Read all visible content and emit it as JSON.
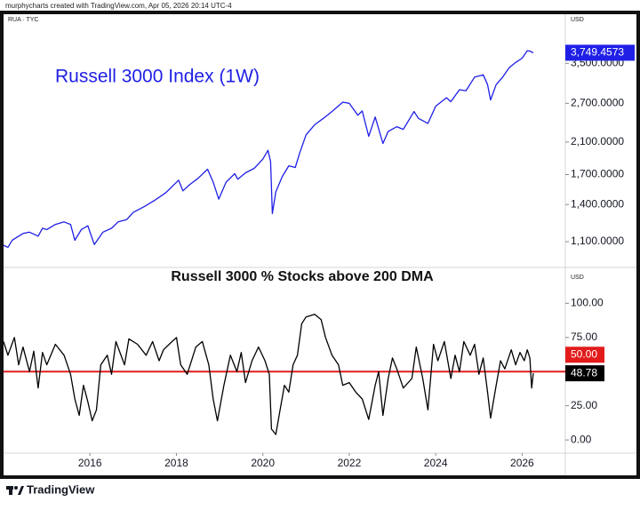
{
  "header": "murphycharts created with TradingView.com, Apr 05, 2026 20:14 UTC-4",
  "footer": "TradingView",
  "chart_data": [
    {
      "type": "line",
      "symbol": "RUA · TYC",
      "axis_unit": "USD",
      "title": "Russell 3000 Index (1W)",
      "color": "#1f1fe6",
      "log_scale": true,
      "grid": false,
      "xlim": [
        2014,
        2027
      ],
      "ylim": [
        936,
        4815
      ],
      "yticks": [
        {
          "value": 1100,
          "label": "1,100.0000"
        },
        {
          "value": 1400,
          "label": "1,400.0000"
        },
        {
          "value": 1700,
          "label": "1,700.0000"
        },
        {
          "value": 2100,
          "label": "2,100.0000"
        },
        {
          "value": 2700,
          "label": "2,700.0000"
        },
        {
          "value": 3500,
          "label": "3,500.0000"
        }
      ],
      "x": [
        2014.0,
        2014.1,
        2014.2,
        2014.3,
        2014.45,
        2014.6,
        2014.8,
        2014.9,
        2015.0,
        2015.2,
        2015.4,
        2015.55,
        2015.65,
        2015.8,
        2015.95,
        2016.1,
        2016.3,
        2016.5,
        2016.65,
        2016.85,
        2017.0,
        2017.25,
        2017.5,
        2017.75,
        2018.05,
        2018.15,
        2018.3,
        2018.5,
        2018.72,
        2018.85,
        2018.98,
        2019.15,
        2019.35,
        2019.42,
        2019.6,
        2019.8,
        2020.0,
        2020.12,
        2020.18,
        2020.22,
        2020.3,
        2020.45,
        2020.6,
        2020.75,
        2020.85,
        2021.0,
        2021.2,
        2021.4,
        2021.6,
        2021.85,
        2022.0,
        2022.2,
        2022.3,
        2022.45,
        2022.6,
        2022.78,
        2022.9,
        2023.1,
        2023.25,
        2023.5,
        2023.6,
        2023.82,
        2024.0,
        2024.25,
        2024.35,
        2024.55,
        2024.7,
        2024.9,
        2025.1,
        2025.2,
        2025.27,
        2025.4,
        2025.55,
        2025.7,
        2025.85,
        2026.0,
        2026.12,
        2026.18,
        2026.26
      ],
      "values": [
        1075,
        1060,
        1110,
        1130,
        1160,
        1170,
        1140,
        1200,
        1190,
        1230,
        1250,
        1230,
        1110,
        1190,
        1220,
        1080,
        1170,
        1200,
        1250,
        1270,
        1330,
        1380,
        1440,
        1510,
        1640,
        1530,
        1590,
        1660,
        1760,
        1620,
        1450,
        1620,
        1710,
        1650,
        1720,
        1770,
        1880,
        1990,
        1850,
        1320,
        1520,
        1680,
        1800,
        1780,
        1950,
        2200,
        2350,
        2450,
        2560,
        2720,
        2700,
        2500,
        2570,
        2180,
        2470,
        2080,
        2250,
        2320,
        2280,
        2560,
        2450,
        2370,
        2650,
        2800,
        2730,
        2950,
        2930,
        3200,
        3250,
        3050,
        2760,
        3050,
        3200,
        3400,
        3520,
        3620,
        3800,
        3790,
        3749.4573
      ],
      "last_value_label": "3,749.4573"
    },
    {
      "type": "line",
      "axis_unit": "USD",
      "title": "Russell 3000 % Stocks above 200 DMA",
      "color": "#000000",
      "log_scale": false,
      "grid": false,
      "xlim": [
        2014,
        2027
      ],
      "ylim": [
        -9,
        125.6
      ],
      "xticks": [
        2016,
        2018,
        2020,
        2022,
        2024,
        2026
      ],
      "yticks": [
        {
          "value": 0,
          "label": "0.00"
        },
        {
          "value": 25,
          "label": "25.00"
        },
        {
          "value": 75,
          "label": "75.00"
        },
        {
          "value": 100,
          "label": "100.00"
        }
      ],
      "reference_lines": [
        {
          "value": 50,
          "label": "50.00",
          "color": "#e31b1b"
        }
      ],
      "x": [
        2014.0,
        2014.1,
        2014.25,
        2014.35,
        2014.45,
        2014.6,
        2014.7,
        2014.8,
        2014.9,
        2015.0,
        2015.2,
        2015.4,
        2015.55,
        2015.65,
        2015.75,
        2015.85,
        2015.95,
        2016.05,
        2016.15,
        2016.25,
        2016.4,
        2016.5,
        2016.6,
        2016.8,
        2016.9,
        2017.1,
        2017.3,
        2017.45,
        2017.6,
        2017.7,
        2017.9,
        2018.0,
        2018.1,
        2018.25,
        2018.45,
        2018.6,
        2018.75,
        2018.85,
        2018.95,
        2019.1,
        2019.25,
        2019.4,
        2019.5,
        2019.6,
        2019.75,
        2019.9,
        2020.05,
        2020.15,
        2020.2,
        2020.3,
        2020.4,
        2020.5,
        2020.6,
        2020.7,
        2020.8,
        2020.9,
        2021.0,
        2021.2,
        2021.35,
        2021.45,
        2021.6,
        2021.75,
        2021.85,
        2022.0,
        2022.15,
        2022.3,
        2022.45,
        2022.6,
        2022.68,
        2022.78,
        2022.9,
        2023.0,
        2023.1,
        2023.25,
        2023.45,
        2023.55,
        2023.7,
        2023.82,
        2023.95,
        2024.05,
        2024.2,
        2024.35,
        2024.45,
        2024.55,
        2024.65,
        2024.8,
        2024.9,
        2025.0,
        2025.1,
        2025.2,
        2025.27,
        2025.4,
        2025.5,
        2025.6,
        2025.75,
        2025.85,
        2025.95,
        2026.05,
        2026.12,
        2026.18,
        2026.22,
        2026.26
      ],
      "values": [
        72,
        62,
        75,
        55,
        68,
        50,
        65,
        38,
        64,
        55,
        70,
        62,
        48,
        30,
        18,
        40,
        28,
        14,
        22,
        55,
        62,
        48,
        72,
        55,
        74,
        70,
        62,
        72,
        58,
        66,
        72,
        75,
        55,
        48,
        68,
        72,
        55,
        30,
        14,
        40,
        62,
        50,
        64,
        42,
        58,
        68,
        58,
        48,
        8,
        4,
        22,
        40,
        35,
        55,
        62,
        85,
        90,
        92,
        88,
        75,
        62,
        55,
        40,
        42,
        35,
        30,
        15,
        40,
        50,
        18,
        45,
        60,
        52,
        38,
        45,
        68,
        45,
        22,
        70,
        58,
        72,
        45,
        62,
        50,
        72,
        62,
        70,
        48,
        60,
        35,
        16,
        40,
        58,
        52,
        66,
        55,
        64,
        58,
        66,
        60,
        38,
        48.78
      ]
    }
  ]
}
